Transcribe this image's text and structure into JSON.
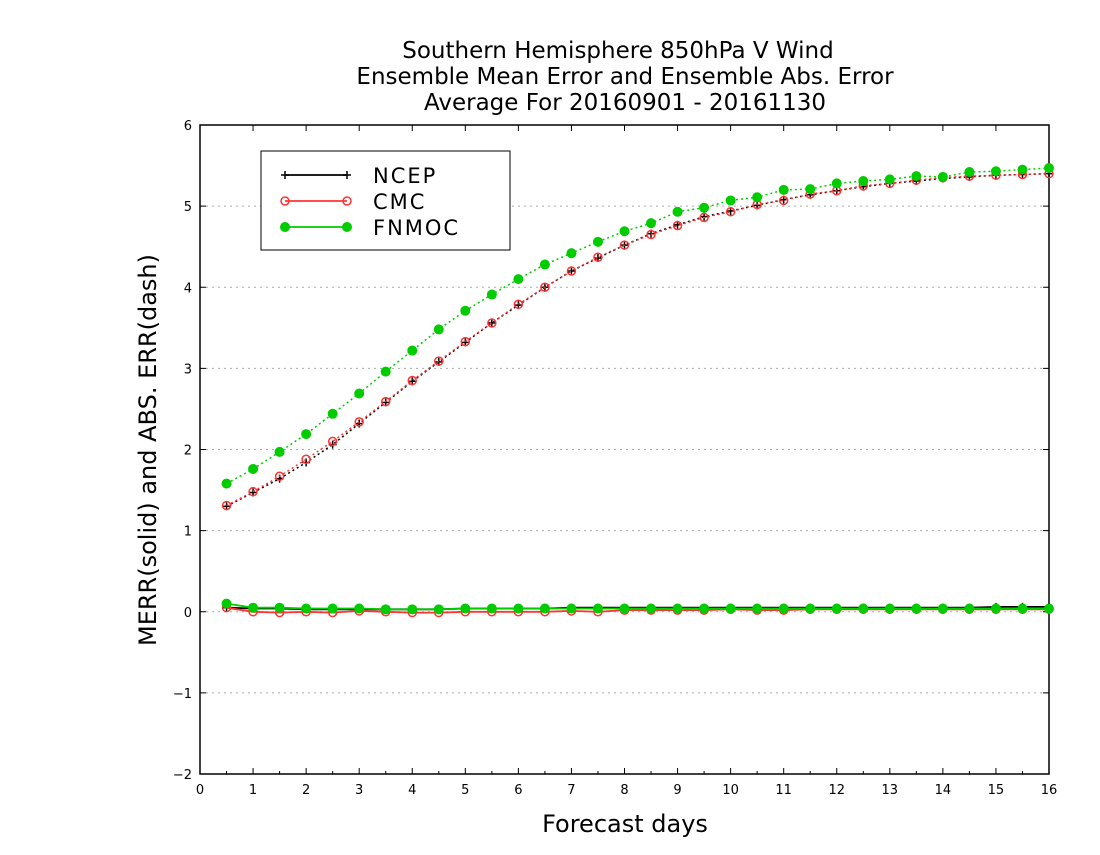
{
  "chart_data": {
    "type": "line",
    "title_lines": [
      "Southern Hemisphere 850hPa V Wind",
      "Ensemble Mean Error and Ensemble Abs. Error",
      "Average For 20160901 - 20161130"
    ],
    "xlabel": "Forecast days",
    "ylabel": "MERR(solid) and ABS. ERR(dash)",
    "xlim": [
      0,
      16
    ],
    "ylim": [
      -2,
      6
    ],
    "xticks": [
      0,
      1,
      2,
      3,
      4,
      5,
      6,
      7,
      8,
      9,
      10,
      11,
      12,
      13,
      14,
      15,
      16
    ],
    "xtick_labels": [
      "0",
      "1",
      "2",
      "3",
      "4",
      "5",
      "6",
      "7",
      "8",
      "9",
      "10",
      "11",
      "12",
      "13",
      "14",
      "15",
      "16"
    ],
    "yticks": [
      -2,
      -1,
      0,
      1,
      2,
      3,
      4,
      5,
      6
    ],
    "ytick_labels": [
      "−2",
      "−1",
      "0",
      "1",
      "2",
      "3",
      "4",
      "5",
      "6"
    ],
    "grid": "horizontal dotted",
    "legend_position": "top-left",
    "x": [
      0.5,
      1,
      1.5,
      2,
      2.5,
      3,
      3.5,
      4,
      4.5,
      5,
      5.5,
      6,
      6.5,
      7,
      7.5,
      8,
      8.5,
      9,
      9.5,
      10,
      10.5,
      11,
      11.5,
      12,
      12.5,
      13,
      13.5,
      14,
      14.5,
      15,
      15.5,
      16
    ],
    "series": [
      {
        "name": "NCEP",
        "color": "#000000",
        "marker": "plus",
        "merr": [
          0.05,
          0.04,
          0.04,
          0.03,
          0.03,
          0.03,
          0.03,
          0.03,
          0.03,
          0.04,
          0.04,
          0.04,
          0.04,
          0.05,
          0.05,
          0.05,
          0.05,
          0.05,
          0.05,
          0.05,
          0.05,
          0.05,
          0.05,
          0.05,
          0.05,
          0.05,
          0.05,
          0.05,
          0.05,
          0.06,
          0.06,
          0.06
        ],
        "abs_err": [
          1.3,
          1.47,
          1.64,
          1.84,
          2.06,
          2.32,
          2.58,
          2.84,
          3.08,
          3.32,
          3.56,
          3.78,
          4.0,
          4.2,
          4.36,
          4.52,
          4.66,
          4.77,
          4.87,
          4.94,
          5.01,
          5.08,
          5.14,
          5.19,
          5.24,
          5.28,
          5.31,
          5.34,
          5.36,
          5.38,
          5.39,
          5.4
        ]
      },
      {
        "name": "CMC",
        "color": "#ff3333",
        "marker": "open-circle",
        "merr": [
          0.05,
          0.0,
          -0.01,
          0.0,
          -0.01,
          0.01,
          0.0,
          -0.01,
          -0.01,
          0.0,
          0.0,
          0.0,
          0.0,
          0.01,
          0.0,
          0.02,
          0.02,
          0.02,
          0.02,
          0.03,
          0.02,
          0.02,
          0.03,
          0.03,
          0.03,
          0.03,
          0.03,
          0.03,
          0.03,
          0.03,
          0.03,
          0.03
        ],
        "abs_err": [
          1.31,
          1.48,
          1.67,
          1.88,
          2.1,
          2.34,
          2.59,
          2.85,
          3.09,
          3.33,
          3.56,
          3.79,
          4.0,
          4.2,
          4.37,
          4.52,
          4.65,
          4.76,
          4.86,
          4.93,
          5.02,
          5.07,
          5.15,
          5.19,
          5.25,
          5.28,
          5.32,
          5.35,
          5.37,
          5.38,
          5.39,
          5.4
        ]
      },
      {
        "name": "FNMOC",
        "color": "#00cc00",
        "marker": "filled-circle",
        "merr": [
          0.1,
          0.05,
          0.05,
          0.04,
          0.04,
          0.04,
          0.03,
          0.03,
          0.03,
          0.04,
          0.04,
          0.04,
          0.04,
          0.04,
          0.04,
          0.04,
          0.04,
          0.04,
          0.04,
          0.04,
          0.04,
          0.04,
          0.04,
          0.04,
          0.04,
          0.04,
          0.04,
          0.04,
          0.04,
          0.04,
          0.04,
          0.04
        ],
        "abs_err": [
          1.58,
          1.76,
          1.97,
          2.19,
          2.44,
          2.69,
          2.96,
          3.22,
          3.48,
          3.71,
          3.91,
          4.1,
          4.28,
          4.42,
          4.56,
          4.69,
          4.79,
          4.93,
          4.98,
          5.07,
          5.11,
          5.2,
          5.21,
          5.28,
          5.31,
          5.33,
          5.37,
          5.36,
          5.42,
          5.43,
          5.45,
          5.47
        ]
      }
    ]
  }
}
